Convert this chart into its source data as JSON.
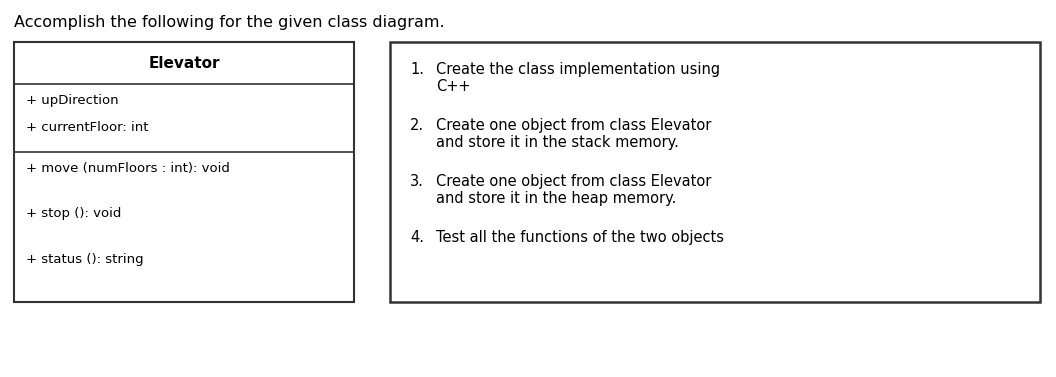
{
  "title": "Accomplish the following for the given class diagram.",
  "title_fontsize": 11.5,
  "class_name": "Elevator",
  "class_name_fontsize": 11,
  "attributes": [
    "+ upDirection",
    "+ currentFloor: int"
  ],
  "methods": [
    "+ move (numFloors : int): void",
    "+ stop (): void",
    "+ status (): string"
  ],
  "tasks_numbered": [
    {
      "num": "1.",
      "line1": "Create the class implementation using",
      "line2": "C++"
    },
    {
      "num": "2.",
      "line1": "Create one object from class Elevator",
      "line2": "and store it in the stack memory."
    },
    {
      "num": "3.",
      "line1": "Create one object from class Elevator",
      "line2": "and store it in the heap memory."
    },
    {
      "num": "4.",
      "line1": "Test all the functions of the two objects",
      "line2": ""
    }
  ],
  "bg_color": "#ffffff",
  "text_color": "#000000",
  "box_edge_color": "#333333",
  "attr_fontsize": 9.5,
  "method_fontsize": 9.5,
  "task_fontsize": 10.5
}
